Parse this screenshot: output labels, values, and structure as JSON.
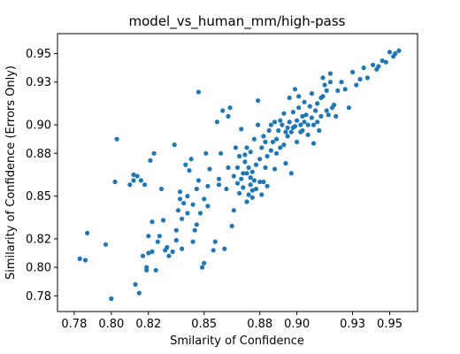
{
  "chart_data": {
    "type": "scatter",
    "title": "model_vs_human_mm/high-pass",
    "xlabel": "Smilarity of Confidence",
    "ylabel": "Similarity of Confidence (Errors Only)",
    "xlim": [
      0.771,
      0.965
    ],
    "ylim": [
      0.769,
      0.964
    ],
    "xticks": [
      0.78,
      0.8,
      0.82,
      0.85,
      0.88,
      0.9,
      0.93,
      0.95
    ],
    "xtick_labels": [
      "0.78",
      "0.80",
      "0.82",
      "0.85",
      "0.88",
      "0.90",
      "0.93",
      "0.95"
    ],
    "yticks": [
      0.78,
      0.8,
      0.82,
      0.85,
      0.88,
      0.9,
      0.93,
      0.95
    ],
    "ytick_labels": [
      "0.78",
      "0.80",
      "0.82",
      "0.85",
      "0.88",
      "0.90",
      "0.93",
      "0.95"
    ],
    "grid": false,
    "marker_color": "#1f77b4",
    "series": [
      {
        "points": [
          [
            0.783,
            0.806
          ],
          [
            0.786,
            0.805
          ],
          [
            0.787,
            0.824
          ],
          [
            0.797,
            0.816
          ],
          [
            0.8,
            0.778
          ],
          [
            0.802,
            0.86
          ],
          [
            0.803,
            0.89
          ],
          [
            0.81,
            0.858
          ],
          [
            0.812,
            0.861
          ],
          [
            0.812,
            0.865
          ],
          [
            0.813,
            0.788
          ],
          [
            0.814,
            0.864
          ],
          [
            0.815,
            0.782
          ],
          [
            0.816,
            0.861
          ],
          [
            0.817,
            0.808
          ],
          [
            0.818,
            0.858
          ],
          [
            0.819,
            0.798
          ],
          [
            0.819,
            0.8
          ],
          [
            0.82,
            0.81
          ],
          [
            0.82,
            0.822
          ],
          [
            0.821,
            0.875
          ],
          [
            0.822,
            0.832
          ],
          [
            0.822,
            0.811
          ],
          [
            0.823,
            0.88
          ],
          [
            0.824,
            0.798
          ],
          [
            0.825,
            0.818
          ],
          [
            0.826,
            0.822
          ],
          [
            0.827,
            0.855
          ],
          [
            0.828,
            0.833
          ],
          [
            0.829,
            0.812
          ],
          [
            0.83,
            0.814
          ],
          [
            0.831,
            0.808
          ],
          [
            0.833,
            0.811
          ],
          [
            0.834,
            0.886
          ],
          [
            0.835,
            0.819
          ],
          [
            0.835,
            0.826
          ],
          [
            0.836,
            0.84
          ],
          [
            0.837,
            0.848
          ],
          [
            0.837,
            0.853
          ],
          [
            0.838,
            0.813
          ],
          [
            0.838,
            0.834
          ],
          [
            0.839,
            0.845
          ],
          [
            0.84,
            0.872
          ],
          [
            0.841,
            0.838
          ],
          [
            0.841,
            0.85
          ],
          [
            0.842,
            0.868
          ],
          [
            0.843,
            0.876
          ],
          [
            0.844,
            0.818
          ],
          [
            0.844,
            0.844
          ],
          [
            0.845,
            0.826
          ],
          [
            0.846,
            0.83
          ],
          [
            0.846,
            0.855
          ],
          [
            0.847,
            0.861
          ],
          [
            0.847,
            0.923
          ],
          [
            0.848,
            0.838
          ],
          [
            0.849,
            0.8
          ],
          [
            0.85,
            0.803
          ],
          [
            0.85,
            0.848
          ],
          [
            0.851,
            0.88
          ],
          [
            0.852,
            0.843
          ],
          [
            0.852,
            0.857
          ],
          [
            0.853,
            0.869
          ],
          [
            0.855,
            0.812
          ],
          [
            0.856,
            0.818
          ],
          [
            0.857,
            0.902
          ],
          [
            0.858,
            0.858
          ],
          [
            0.858,
            0.862
          ],
          [
            0.859,
            0.88
          ],
          [
            0.86,
            0.91
          ],
          [
            0.861,
            0.813
          ],
          [
            0.862,
            0.855
          ],
          [
            0.863,
            0.906
          ],
          [
            0.863,
            0.87
          ],
          [
            0.864,
            0.912
          ],
          [
            0.865,
            0.829
          ],
          [
            0.866,
            0.84
          ],
          [
            0.866,
            0.864
          ],
          [
            0.867,
            0.884
          ],
          [
            0.868,
            0.859
          ],
          [
            0.868,
            0.87
          ],
          [
            0.869,
            0.878
          ],
          [
            0.869,
            0.852
          ],
          [
            0.87,
            0.862
          ],
          [
            0.87,
            0.897
          ],
          [
            0.871,
            0.856
          ],
          [
            0.871,
            0.866
          ],
          [
            0.872,
            0.874
          ],
          [
            0.872,
            0.879
          ],
          [
            0.873,
            0.846
          ],
          [
            0.873,
            0.866
          ],
          [
            0.873,
            0.884
          ],
          [
            0.874,
            0.851
          ],
          [
            0.874,
            0.87
          ],
          [
            0.875,
            0.858
          ],
          [
            0.875,
            0.863
          ],
          [
            0.875,
            0.881
          ],
          [
            0.876,
            0.849
          ],
          [
            0.876,
            0.854
          ],
          [
            0.876,
            0.867
          ],
          [
            0.877,
            0.89
          ],
          [
            0.877,
            0.861
          ],
          [
            0.878,
            0.855
          ],
          [
            0.878,
            0.872
          ],
          [
            0.879,
            0.9
          ],
          [
            0.879,
            0.917
          ],
          [
            0.88,
            0.86
          ],
          [
            0.88,
            0.876
          ],
          [
            0.881,
            0.851
          ],
          [
            0.881,
            0.884
          ],
          [
            0.882,
            0.86
          ],
          [
            0.882,
            0.892
          ],
          [
            0.883,
            0.87
          ],
          [
            0.883,
            0.888
          ],
          [
            0.884,
            0.857
          ],
          [
            0.884,
            0.878
          ],
          [
            0.885,
            0.896
          ],
          [
            0.886,
            0.882
          ],
          [
            0.886,
            0.9
          ],
          [
            0.887,
            0.888
          ],
          [
            0.888,
            0.869
          ],
          [
            0.888,
            0.902
          ],
          [
            0.889,
            0.88
          ],
          [
            0.889,
            0.89
          ],
          [
            0.89,
            0.896
          ],
          [
            0.891,
            0.884
          ],
          [
            0.891,
            0.903
          ],
          [
            0.892,
            0.9
          ],
          [
            0.893,
            0.908
          ],
          [
            0.893,
            0.886
          ],
          [
            0.894,
            0.873
          ],
          [
            0.894,
            0.895
          ],
          [
            0.895,
            0.898
          ],
          [
            0.895,
            0.892
          ],
          [
            0.896,
            0.902
          ],
          [
            0.896,
            0.919
          ],
          [
            0.897,
            0.866
          ],
          [
            0.897,
            0.895
          ],
          [
            0.898,
            0.898
          ],
          [
            0.898,
            0.909
          ],
          [
            0.899,
            0.899
          ],
          [
            0.899,
            0.925
          ],
          [
            0.9,
            0.888
          ],
          [
            0.9,
            0.903
          ],
          [
            0.901,
            0.912
          ],
          [
            0.901,
            0.92
          ],
          [
            0.902,
            0.895
          ],
          [
            0.902,
            0.9
          ],
          [
            0.903,
            0.896
          ],
          [
            0.903,
            0.906
          ],
          [
            0.904,
            0.902
          ],
          [
            0.904,
            0.916
          ],
          [
            0.905,
            0.907
          ],
          [
            0.906,
            0.9
          ],
          [
            0.906,
            0.893
          ],
          [
            0.907,
            0.913
          ],
          [
            0.908,
            0.905
          ],
          [
            0.908,
            0.922
          ],
          [
            0.909,
            0.9
          ],
          [
            0.909,
            0.887
          ],
          [
            0.91,
            0.91
          ],
          [
            0.911,
            0.902
          ],
          [
            0.911,
            0.915
          ],
          [
            0.912,
            0.896
          ],
          [
            0.913,
            0.919
          ],
          [
            0.913,
            0.906
          ],
          [
            0.914,
            0.92
          ],
          [
            0.914,
            0.933
          ],
          [
            0.915,
            0.928
          ],
          [
            0.916,
            0.91
          ],
          [
            0.916,
            0.924
          ],
          [
            0.917,
            0.907
          ],
          [
            0.918,
            0.93
          ],
          [
            0.918,
            0.936
          ],
          [
            0.919,
            0.912
          ],
          [
            0.92,
            0.914
          ],
          [
            0.921,
            0.906
          ],
          [
            0.922,
            0.924
          ],
          [
            0.924,
            0.93
          ],
          [
            0.926,
            0.925
          ],
          [
            0.928,
            0.912
          ],
          [
            0.93,
            0.937
          ],
          [
            0.932,
            0.928
          ],
          [
            0.934,
            0.932
          ],
          [
            0.936,
            0.94
          ],
          [
            0.938,
            0.933
          ],
          [
            0.941,
            0.942
          ],
          [
            0.943,
            0.939
          ],
          [
            0.944,
            0.941
          ],
          [
            0.946,
            0.945
          ],
          [
            0.948,
            0.944
          ],
          [
            0.95,
            0.951
          ],
          [
            0.952,
            0.948
          ],
          [
            0.953,
            0.95
          ],
          [
            0.955,
            0.952
          ]
        ]
      }
    ]
  }
}
